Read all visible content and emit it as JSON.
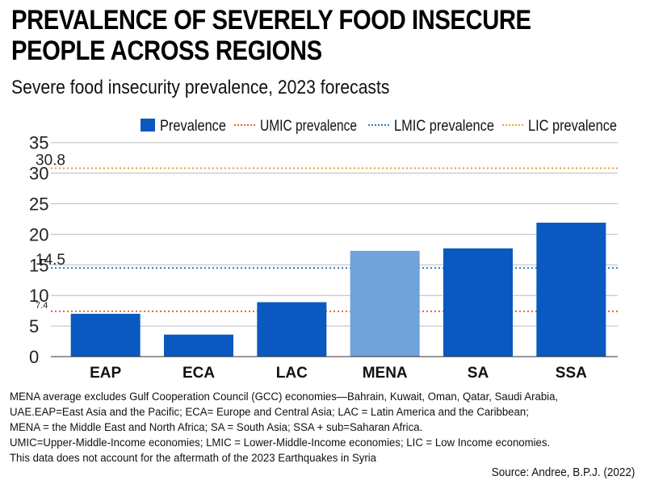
{
  "chart_data": {
    "type": "bar",
    "title": "PREVALENCE OF SEVERELY FOOD INSECURE PEOPLE ACROSS REGIONS",
    "subtitle": "Severe food insecurity prevalence, 2023 forecasts",
    "categories": [
      "EAP",
      "ECA",
      "LAC",
      "MENA",
      "SA",
      "SSA"
    ],
    "series": [
      {
        "name": "Prevalence",
        "values": [
          7.0,
          3.6,
          8.9,
          17.3,
          17.7,
          21.9
        ]
      }
    ],
    "highlight_category": "MENA",
    "reference_lines": [
      {
        "name": "UMIC prevalence",
        "value": 7.4,
        "label": "7.4",
        "color": "#e0632a"
      },
      {
        "name": "LMIC prevalence",
        "value": 14.5,
        "label": "14.5",
        "color": "#2a7fc0"
      },
      {
        "name": "LIC prevalence",
        "value": 30.8,
        "label": "30.8",
        "color": "#e8a33a"
      }
    ],
    "yticks": [
      0,
      5,
      10,
      15,
      20,
      25,
      30,
      35
    ],
    "ylim": [
      0,
      35
    ],
    "legend_position": "top",
    "grid": "horizontal",
    "colors": {
      "bar": "#0a59c0",
      "highlight_bar": "#6fa3da",
      "grid": "#bcbcbc"
    }
  },
  "notes": [
    "MENA average excludes Gulf Cooperation Council (GCC) economies—Bahrain, Kuwait, Oman, Qatar, Saudi Arabia,",
    "UAE.EAP=East Asia and the Pacific; ECA= Europe and Central Asia; LAC = Latin America and the Caribbean;",
    "MENA = the Middle East and North Africa; SA = South Asia; SSA + sub=Saharan Africa.",
    "UMIC=Upper-Middle-Income economies; LMIC = Lower-Middle-Income economies; LIC = Low Income economies.",
    "This data does not account for the aftermath of the 2023 Earthquakes in Syria"
  ],
  "source": "Source: Andree, B.P.J. (2022)"
}
